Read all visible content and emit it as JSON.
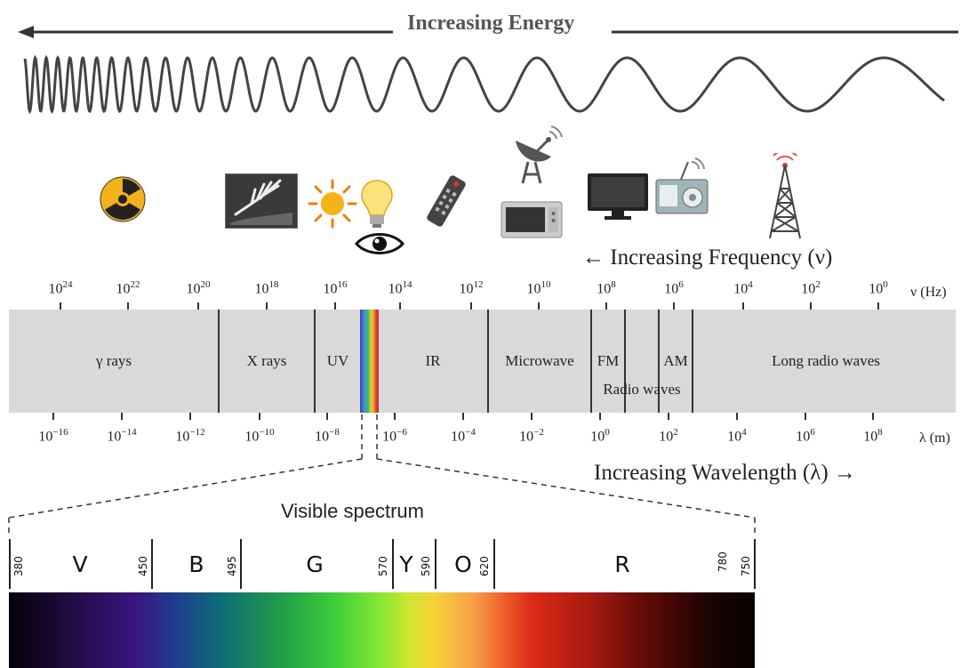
{
  "header": {
    "energy_label": "Increasing Energy",
    "frequency_label": "← Increasing Frequency (ν)",
    "wavelength_label": "Increasing Wavelength (λ) →"
  },
  "frequency_axis": {
    "unit": "ν (Hz)",
    "ticks": [
      {
        "base": "10",
        "exp": "24"
      },
      {
        "base": "10",
        "exp": "22"
      },
      {
        "base": "10",
        "exp": "20"
      },
      {
        "base": "10",
        "exp": "18"
      },
      {
        "base": "10",
        "exp": "16"
      },
      {
        "base": "10",
        "exp": "14"
      },
      {
        "base": "10",
        "exp": "12"
      },
      {
        "base": "10",
        "exp": "10"
      },
      {
        "base": "10",
        "exp": "8"
      },
      {
        "base": "10",
        "exp": "6"
      },
      {
        "base": "10",
        "exp": "4"
      },
      {
        "base": "10",
        "exp": "2"
      },
      {
        "base": "10",
        "exp": "0"
      }
    ]
  },
  "wavelength_axis": {
    "unit": "λ (m)",
    "ticks": [
      {
        "base": "10",
        "exp": "−16"
      },
      {
        "base": "10",
        "exp": "−14"
      },
      {
        "base": "10",
        "exp": "−12"
      },
      {
        "base": "10",
        "exp": "−10"
      },
      {
        "base": "10",
        "exp": "−8"
      },
      {
        "base": "10",
        "exp": "−6"
      },
      {
        "base": "10",
        "exp": "−4"
      },
      {
        "base": "10",
        "exp": "−2"
      },
      {
        "base": "10",
        "exp": "0"
      },
      {
        "base": "10",
        "exp": "2"
      },
      {
        "base": "10",
        "exp": "4"
      },
      {
        "base": "10",
        "exp": "6"
      },
      {
        "base": "10",
        "exp": "8"
      }
    ]
  },
  "bands": {
    "gamma": "γ rays",
    "xray": "X rays",
    "uv": "UV",
    "ir": "IR",
    "microwave": "Microwave",
    "fm": "FM",
    "am": "AM",
    "radio": "Radio waves",
    "long_radio": "Long radio waves"
  },
  "visible": {
    "title": "Visible spectrum",
    "colors": [
      "V",
      "B",
      "G",
      "Y",
      "O",
      "R"
    ],
    "wavelengths_nm": [
      "380",
      "450",
      "495",
      "570",
      "590",
      "620",
      "780",
      "750"
    ]
  },
  "icons": [
    "radiation-icon",
    "xray-hand-icon",
    "sun-icon",
    "light-bulb-icon",
    "eye-icon",
    "remote-control-icon",
    "satellite-dish-icon",
    "microwave-oven-icon",
    "television-icon",
    "radio-icon",
    "radio-tower-icon"
  ],
  "colors": {
    "band_fill": "#d9d9d9",
    "energy_text": "#555555"
  }
}
